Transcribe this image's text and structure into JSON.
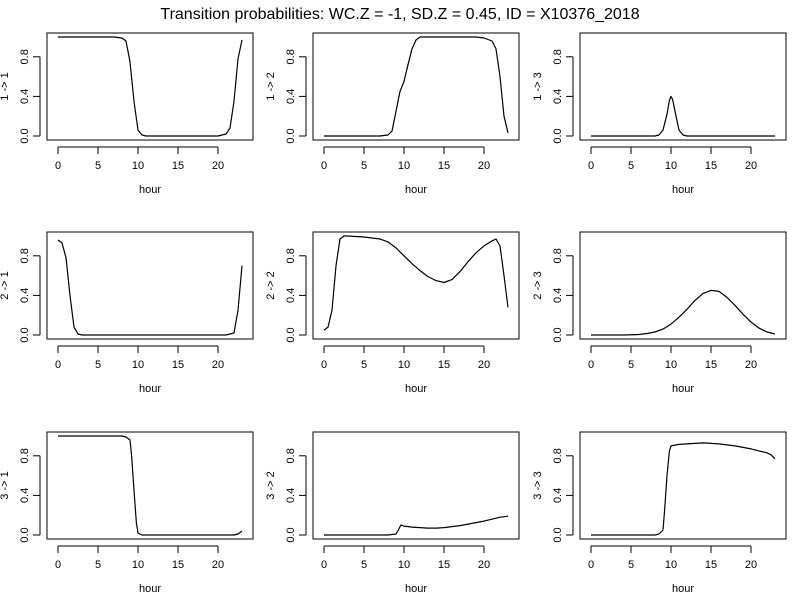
{
  "title": "Transition probabilities: WC.Z = -1, SD.Z = 0.45, ID = X10376_2018",
  "chart_data": [
    {
      "type": "line",
      "ylabel": "1 -> 1",
      "xlabel": "hour",
      "xlim": [
        0,
        23
      ],
      "ylim": [
        0,
        1
      ],
      "xticks": [
        0,
        5,
        10,
        15,
        20
      ],
      "yticks": [
        0.0,
        0.4,
        0.8
      ],
      "x": [
        0,
        1,
        2,
        3,
        4,
        5,
        6,
        7,
        8,
        8.5,
        9,
        9.5,
        10,
        10.5,
        11,
        12,
        13,
        14,
        15,
        16,
        17,
        18,
        19,
        20,
        21,
        21.5,
        22,
        22.5,
        23
      ],
      "y": [
        1,
        1,
        1,
        1,
        1,
        1,
        1,
        1,
        0.99,
        0.96,
        0.75,
        0.35,
        0.06,
        0.01,
        0,
        0,
        0,
        0,
        0,
        0,
        0,
        0,
        0,
        0,
        0.02,
        0.08,
        0.35,
        0.78,
        0.97
      ]
    },
    {
      "type": "line",
      "ylabel": "1 -> 2",
      "xlabel": "hour",
      "xlim": [
        0,
        23
      ],
      "ylim": [
        0,
        1
      ],
      "xticks": [
        0,
        5,
        10,
        15,
        20
      ],
      "yticks": [
        0.0,
        0.4,
        0.8
      ],
      "x": [
        0,
        1,
        2,
        3,
        4,
        5,
        6,
        7,
        8,
        8.5,
        9,
        9.5,
        10,
        10.5,
        11,
        11.5,
        12,
        13,
        14,
        15,
        16,
        17,
        18,
        19,
        20,
        21,
        21.5,
        22,
        22.5,
        23
      ],
      "y": [
        0,
        0,
        0,
        0,
        0,
        0,
        0,
        0,
        0.01,
        0.05,
        0.25,
        0.45,
        0.55,
        0.72,
        0.88,
        0.97,
        1,
        1,
        1,
        1,
        1,
        1,
        1,
        1,
        0.99,
        0.96,
        0.88,
        0.6,
        0.2,
        0.03
      ]
    },
    {
      "type": "line",
      "ylabel": "1 -> 3",
      "xlabel": "hour",
      "xlim": [
        0,
        23
      ],
      "ylim": [
        0,
        1
      ],
      "xticks": [
        0,
        5,
        10,
        15,
        20
      ],
      "yticks": [
        0.0,
        0.4,
        0.8
      ],
      "x": [
        0,
        1,
        2,
        3,
        4,
        5,
        6,
        7,
        8,
        8.5,
        9,
        9.5,
        9.8,
        10,
        10.2,
        10.5,
        11,
        11.5,
        12,
        13,
        14,
        15,
        16,
        17,
        18,
        19,
        20,
        21,
        22,
        23
      ],
      "y": [
        0,
        0,
        0,
        0,
        0,
        0,
        0,
        0,
        0,
        0.01,
        0.06,
        0.22,
        0.36,
        0.4,
        0.37,
        0.25,
        0.06,
        0.01,
        0,
        0,
        0,
        0,
        0,
        0,
        0,
        0,
        0,
        0,
        0,
        0
      ]
    },
    {
      "type": "line",
      "ylabel": "2 -> 1",
      "xlabel": "hour",
      "xlim": [
        0,
        23
      ],
      "ylim": [
        0,
        1
      ],
      "xticks": [
        0,
        5,
        10,
        15,
        20
      ],
      "yticks": [
        0.0,
        0.4,
        0.8
      ],
      "x": [
        0,
        0.5,
        1,
        1.5,
        2,
        2.5,
        3,
        4,
        5,
        6,
        7,
        8,
        9,
        10,
        11,
        12,
        13,
        14,
        15,
        16,
        17,
        18,
        19,
        20,
        21,
        21.5,
        22,
        22.5,
        23
      ],
      "y": [
        0.96,
        0.93,
        0.78,
        0.4,
        0.08,
        0.01,
        0,
        0,
        0,
        0,
        0,
        0,
        0,
        0,
        0,
        0,
        0,
        0,
        0,
        0,
        0,
        0,
        0,
        0,
        0,
        0.01,
        0.02,
        0.25,
        0.7
      ]
    },
    {
      "type": "line",
      "ylabel": "2 -> 2",
      "xlabel": "hour",
      "xlim": [
        0,
        23
      ],
      "ylim": [
        0,
        1
      ],
      "xticks": [
        0,
        5,
        10,
        15,
        20
      ],
      "yticks": [
        0.0,
        0.4,
        0.8
      ],
      "x": [
        0,
        0.5,
        1,
        1.5,
        2,
        2.5,
        3,
        5,
        7,
        8,
        9,
        10,
        11,
        12,
        13,
        14,
        15,
        16,
        17,
        18,
        19,
        20,
        21,
        21.5,
        22,
        22.5,
        23
      ],
      "y": [
        0.05,
        0.08,
        0.25,
        0.7,
        0.97,
        1,
        1,
        0.99,
        0.97,
        0.94,
        0.88,
        0.8,
        0.72,
        0.65,
        0.59,
        0.55,
        0.53,
        0.56,
        0.64,
        0.74,
        0.83,
        0.9,
        0.95,
        0.97,
        0.9,
        0.6,
        0.28
      ]
    },
    {
      "type": "line",
      "ylabel": "2 -> 3",
      "xlabel": "hour",
      "xlim": [
        0,
        23
      ],
      "ylim": [
        0,
        1
      ],
      "xticks": [
        0,
        5,
        10,
        15,
        20
      ],
      "yticks": [
        0.0,
        0.4,
        0.8
      ],
      "x": [
        0,
        2,
        4,
        6,
        7,
        8,
        9,
        10,
        11,
        12,
        13,
        14,
        15,
        16,
        17,
        18,
        19,
        20,
        21,
        22,
        23
      ],
      "y": [
        0,
        0,
        0,
        0.005,
        0.015,
        0.03,
        0.06,
        0.11,
        0.18,
        0.26,
        0.35,
        0.42,
        0.45,
        0.44,
        0.38,
        0.3,
        0.21,
        0.13,
        0.07,
        0.03,
        0.01
      ]
    },
    {
      "type": "line",
      "ylabel": "3 -> 1",
      "xlabel": "hour",
      "xlim": [
        0,
        23
      ],
      "ylim": [
        0,
        1
      ],
      "xticks": [
        0,
        5,
        10,
        15,
        20
      ],
      "yticks": [
        0.0,
        0.4,
        0.8
      ],
      "x": [
        0,
        1,
        2,
        3,
        4,
        5,
        6,
        7,
        8,
        8.5,
        9,
        9.2,
        9.5,
        9.8,
        10,
        10.5,
        11,
        12,
        13,
        14,
        15,
        16,
        17,
        18,
        19,
        20,
        21,
        22,
        22.5,
        23
      ],
      "y": [
        1,
        1,
        1,
        1,
        1,
        1,
        1,
        1,
        1,
        0.99,
        0.96,
        0.8,
        0.45,
        0.12,
        0.02,
        0,
        0,
        0,
        0,
        0,
        0,
        0,
        0,
        0,
        0,
        0,
        0,
        0,
        0.01,
        0.04
      ]
    },
    {
      "type": "line",
      "ylabel": "3 -> 2",
      "xlabel": "hour",
      "xlim": [
        0,
        23
      ],
      "ylim": [
        0,
        1
      ],
      "xticks": [
        0,
        5,
        10,
        15,
        20
      ],
      "yticks": [
        0.0,
        0.4,
        0.8
      ],
      "x": [
        0,
        2,
        4,
        6,
        8,
        9,
        9.3,
        9.6,
        10,
        11,
        12,
        13,
        14,
        15,
        16,
        17,
        18,
        19,
        20,
        21,
        22,
        23
      ],
      "y": [
        0,
        0,
        0,
        0,
        0,
        0.01,
        0.05,
        0.1,
        0.09,
        0.08,
        0.075,
        0.07,
        0.07,
        0.075,
        0.085,
        0.095,
        0.11,
        0.125,
        0.14,
        0.16,
        0.18,
        0.19
      ]
    },
    {
      "type": "line",
      "ylabel": "3 -> 3",
      "xlabel": "hour",
      "xlim": [
        0,
        23
      ],
      "ylim": [
        0,
        1
      ],
      "xticks": [
        0,
        5,
        10,
        15,
        20
      ],
      "yticks": [
        0.0,
        0.4,
        0.8
      ],
      "x": [
        0,
        2,
        4,
        6,
        8,
        8.5,
        9,
        9.2,
        9.5,
        9.8,
        10,
        11,
        12,
        13,
        14,
        15,
        16,
        17,
        18,
        19,
        20,
        21,
        22,
        22.5,
        23
      ],
      "y": [
        0,
        0,
        0,
        0,
        0,
        0.01,
        0.05,
        0.25,
        0.6,
        0.85,
        0.9,
        0.915,
        0.92,
        0.925,
        0.93,
        0.925,
        0.92,
        0.91,
        0.9,
        0.885,
        0.87,
        0.85,
        0.83,
        0.81,
        0.77
      ]
    }
  ]
}
